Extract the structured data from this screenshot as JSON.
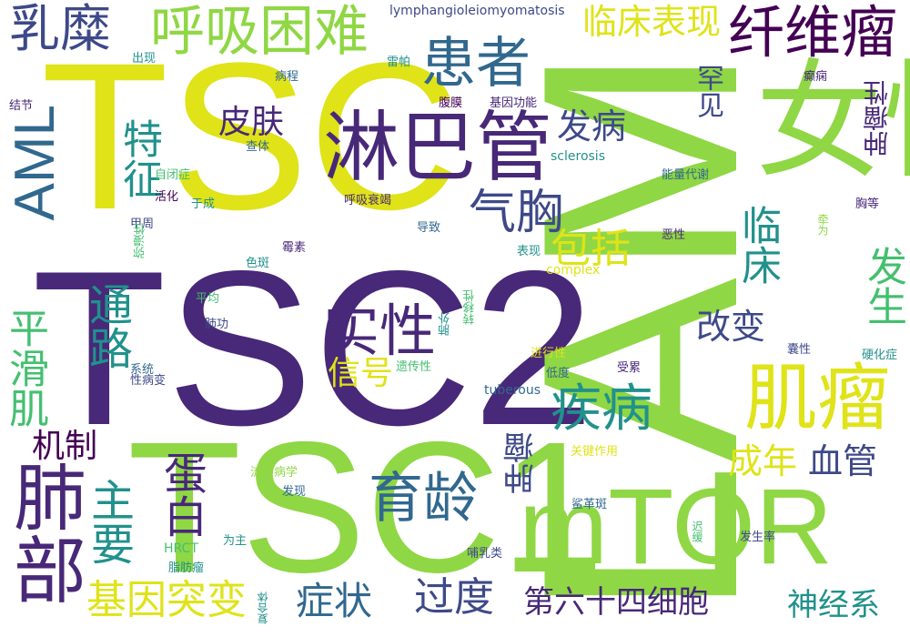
{
  "colors": {
    "yellow": "#dfe318",
    "lime": "#8fd744",
    "green": "#44bf70",
    "teal": "#21918c",
    "blue": "#31688e",
    "indigo": "#3e4989",
    "purple": "#482878",
    "dark": "#440154"
  },
  "words": [
    {
      "text": "TSC2"
    },
    {
      "text": "LAM"
    },
    {
      "text": "TSC"
    },
    {
      "text": "TSC1"
    },
    {
      "text": "女性"
    },
    {
      "text": "mTOR"
    },
    {
      "text": "淋巴管"
    },
    {
      "text": "肌瘤"
    },
    {
      "text": "AML"
    },
    {
      "text": "肺部"
    },
    {
      "text": "呼吸困难"
    },
    {
      "text": "纤维瘤"
    },
    {
      "text": "患者"
    },
    {
      "text": "实性"
    },
    {
      "text": "乳糜"
    },
    {
      "text": "育龄"
    },
    {
      "text": "疾病"
    },
    {
      "text": "气胸"
    },
    {
      "text": "平滑肌"
    },
    {
      "text": "通路"
    },
    {
      "text": "主要"
    },
    {
      "text": "蛋白"
    },
    {
      "text": "基因突变"
    },
    {
      "text": "临床"
    },
    {
      "text": "发生"
    },
    {
      "text": "临床表现"
    },
    {
      "text": "特征"
    },
    {
      "text": "包括"
    },
    {
      "text": "过度"
    },
    {
      "text": "症状"
    },
    {
      "text": "成年"
    },
    {
      "text": "血管"
    },
    {
      "text": "改变"
    },
    {
      "text": "第六十四细胞"
    },
    {
      "text": "神经系"
    },
    {
      "text": "皮肤"
    },
    {
      "text": "发病"
    },
    {
      "text": "机制"
    },
    {
      "text": "信号"
    },
    {
      "text": "罕见"
    },
    {
      "text": "肿瘤性"
    },
    {
      "text": "肿瘤"
    },
    {
      "text": "lymphangioleiomyomatosis"
    },
    {
      "text": "雷帕"
    },
    {
      "text": "出现"
    },
    {
      "text": "结节"
    },
    {
      "text": "病程"
    },
    {
      "text": "腹膜"
    },
    {
      "text": "基因功能"
    },
    {
      "text": "癫痫"
    },
    {
      "text": "查体"
    },
    {
      "text": "自闭症"
    },
    {
      "text": "sclerosis"
    },
    {
      "text": "能量代谢"
    },
    {
      "text": "活化"
    },
    {
      "text": "于成"
    },
    {
      "text": "呼吸衰竭"
    },
    {
      "text": "甲周"
    },
    {
      "text": "导致"
    },
    {
      "text": "胸等"
    },
    {
      "text": "弥漫性"
    },
    {
      "text": "霉素"
    },
    {
      "text": "表现"
    },
    {
      "text": "恶性"
    },
    {
      "text": "牵为"
    },
    {
      "text": "色斑"
    },
    {
      "text": "complex"
    },
    {
      "text": "平均"
    },
    {
      "text": "肺外"
    },
    {
      "text": "转移性"
    },
    {
      "text": "肺功"
    },
    {
      "text": "进行性"
    },
    {
      "text": "囊性"
    },
    {
      "text": "硬化症"
    },
    {
      "text": "系统"
    },
    {
      "text": "遗传性"
    },
    {
      "text": "低度"
    },
    {
      "text": "受累"
    },
    {
      "text": "性病变"
    },
    {
      "text": "tuberous"
    },
    {
      "text": "关键作用"
    },
    {
      "text": "流行病学"
    },
    {
      "text": "鲨革斑"
    },
    {
      "text": "发现"
    },
    {
      "text": "为主"
    },
    {
      "text": "迟缓"
    },
    {
      "text": "发生率"
    },
    {
      "text": "HRCT"
    },
    {
      "text": "哺乳类"
    },
    {
      "text": "脂肪瘤"
    },
    {
      "text": "复合体"
    }
  ]
}
